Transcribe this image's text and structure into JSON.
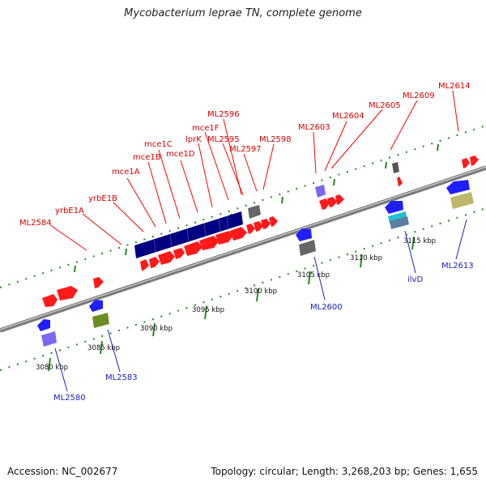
{
  "title": "Mycobacterium leprae TN, complete genome",
  "footer": {
    "accession": "Accession: NC_002677",
    "summary": "Topology: circular; Length: 3,268,203 bp; Genes: 1,655"
  },
  "kbp_labels": [
    "3080 kbp",
    "3085 kbp",
    "3090 kbp",
    "3095 kbp",
    "3100 kbp",
    "3105 kbp",
    "3110 kbp",
    "3115 kbp"
  ],
  "top_labels": [
    "ML2584",
    "yrbE1A",
    "yrbE1B",
    "mce1A",
    "mce1B",
    "mce1C",
    "mce1D",
    "lprK",
    "mce1F",
    "ML2595",
    "ML2596",
    "ML2597",
    "ML2598",
    "ML2603",
    "ML2604",
    "ML2605",
    "ML2609",
    "ML2614"
  ],
  "bottom_labels": [
    "ML2580",
    "ML2583",
    "ML2600",
    "ilvD",
    "ML2613"
  ],
  "colors": {
    "forward_cds": "#ff0000",
    "reverse_cds": "#0000ff",
    "operon": "#000080",
    "backbone": "#888888",
    "ticks": "#228b22",
    "label_forward": "#d40000",
    "label_reverse": "#1a22b8"
  }
}
